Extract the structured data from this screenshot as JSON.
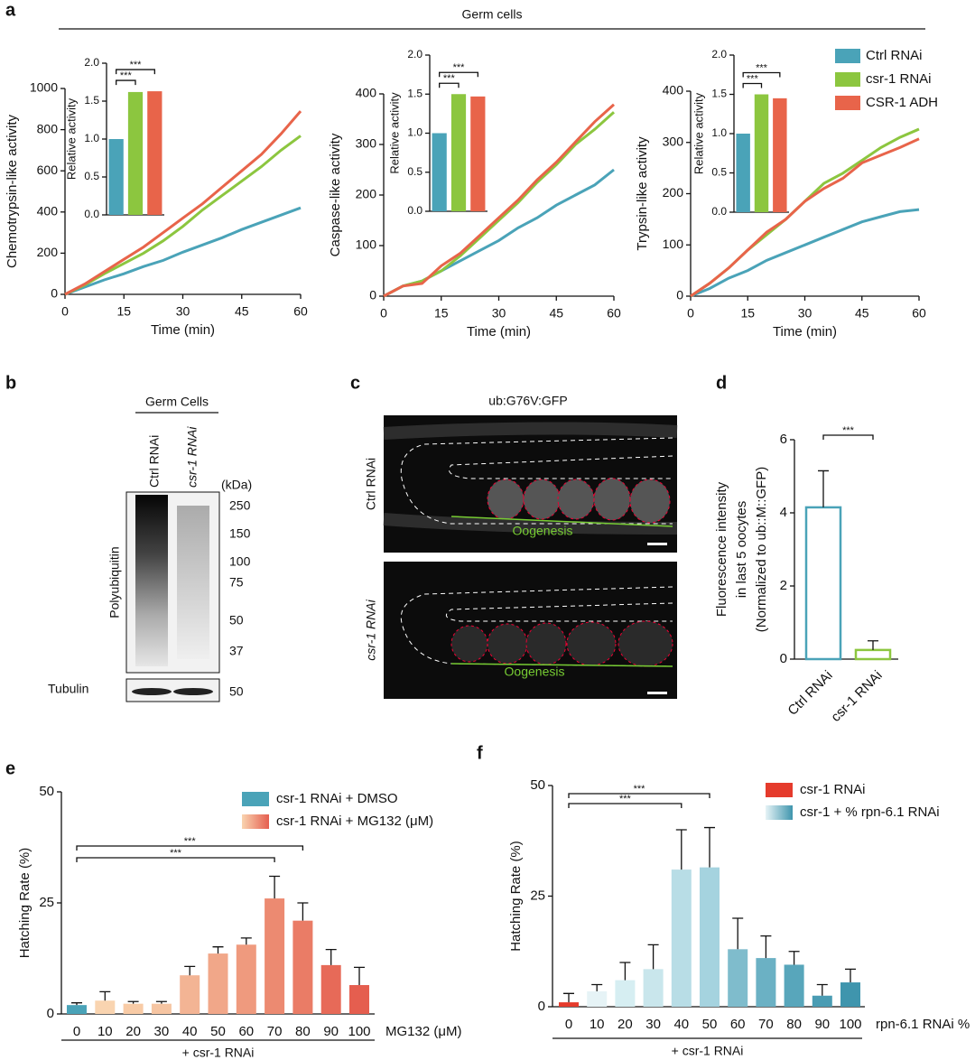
{
  "panel_labels": [
    "a",
    "b",
    "c",
    "d",
    "e",
    "f"
  ],
  "panel_a": {
    "title": "Germ cells"
  },
  "blot": {
    "header": "Germ Cells",
    "lanes": [
      "Ctrl RNAi",
      "csr-1 RNAi"
    ],
    "unit": "(kDa)",
    "markers": [
      "250",
      "150",
      "100",
      "75",
      "50",
      "37"
    ],
    "antibody": "Polyubiquitin",
    "loading_control": "Tubulin",
    "loading_marker": "50"
  },
  "micrograph": {
    "title": "ub:G76V:GFP",
    "rows": [
      "Ctrl RNAi",
      "csr-1 RNAi"
    ],
    "region_labels": [
      "Oogenesis",
      "Oogenesis"
    ]
  },
  "chart_data": [
    {
      "type": "line",
      "xlabel": "Time (min)",
      "ylabel": "Chemotrypsin-like  activity",
      "x": [
        0,
        5,
        10,
        15,
        20,
        25,
        30,
        35,
        40,
        45,
        50,
        55,
        60
      ],
      "xlim": [
        0,
        60
      ],
      "xticks": [
        0,
        15,
        30,
        45,
        60
      ],
      "ylim": [
        0,
        1000
      ],
      "yticks": [
        0,
        200,
        400,
        600,
        800,
        1000
      ],
      "series": [
        {
          "color": "#4aa3b8",
          "values": [
            0,
            35,
            70,
            100,
            135,
            165,
            205,
            240,
            275,
            315,
            350,
            385,
            420
          ]
        },
        {
          "color": "#8cc63f",
          "values": [
            0,
            45,
            100,
            150,
            200,
            260,
            330,
            410,
            480,
            550,
            620,
            700,
            770
          ]
        },
        {
          "color": "#e8644a",
          "values": [
            0,
            50,
            110,
            170,
            230,
            300,
            370,
            440,
            520,
            600,
            680,
            780,
            890
          ]
        }
      ],
      "inset": {
        "ylabel": "Relative activity",
        "values": [
          1.0,
          1.62,
          1.63
        ],
        "ylim": [
          0,
          2
        ],
        "yticks": [
          {
            "value": 0,
            "label": "0.0"
          },
          {
            "value": 0.5,
            "label": "0.5"
          },
          {
            "value": 1,
            "label": "1.0"
          },
          {
            "value": 1.5,
            "label": "1.5"
          },
          {
            "value": 2,
            "label": "2.0"
          }
        ],
        "annotations": [
          "***",
          "***"
        ]
      }
    },
    {
      "type": "line",
      "xlabel": "Time (min)",
      "ylabel": "Caspase-like activity",
      "x": [
        0,
        5,
        10,
        15,
        20,
        25,
        30,
        35,
        40,
        45,
        50,
        55,
        60
      ],
      "xlim": [
        0,
        60
      ],
      "xticks": [
        0,
        15,
        30,
        45,
        60
      ],
      "ylim": [
        0,
        400
      ],
      "yticks": [
        0,
        100,
        200,
        300,
        400
      ],
      "series": [
        {
          "color": "#4aa3b8",
          "values": [
            0,
            20,
            30,
            50,
            70,
            90,
            110,
            135,
            155,
            180,
            200,
            220,
            250
          ]
        },
        {
          "color": "#8cc63f",
          "values": [
            0,
            20,
            30,
            50,
            80,
            115,
            150,
            185,
            225,
            260,
            300,
            330,
            364
          ]
        },
        {
          "color": "#e8644a",
          "values": [
            0,
            20,
            25,
            60,
            85,
            120,
            155,
            190,
            230,
            265,
            305,
            345,
            379
          ]
        }
      ],
      "inset": {
        "ylabel": "Relative activity",
        "values": [
          1.0,
          1.5,
          1.47
        ],
        "ylim": [
          0,
          2
        ],
        "yticks": [
          {
            "value": 0,
            "label": "0.0"
          },
          {
            "value": 0.5,
            "label": "0.5"
          },
          {
            "value": 1,
            "label": "1.0"
          },
          {
            "value": 1.5,
            "label": "1.5"
          },
          {
            "value": 2,
            "label": "2.0"
          }
        ],
        "annotations": [
          "***",
          "***"
        ]
      }
    },
    {
      "type": "line",
      "xlabel": "Time (min)",
      "ylabel": "Trypsin-like activity",
      "legend": "right",
      "x": [
        0,
        5,
        10,
        15,
        20,
        25,
        30,
        35,
        40,
        45,
        50,
        55,
        60
      ],
      "xlim": [
        0,
        60
      ],
      "xticks": [
        0,
        15,
        30,
        45,
        60
      ],
      "ylim": [
        0,
        400
      ],
      "yticks": [
        0,
        100,
        200,
        300,
        400
      ],
      "series": [
        {
          "name": "Ctrl RNAi",
          "color": "#4aa3b8",
          "values": [
            0,
            15,
            35,
            50,
            70,
            85,
            100,
            115,
            130,
            145,
            155,
            165,
            169
          ]
        },
        {
          "name": "csr-1 RNAi",
          "color": "#8cc63f",
          "values": [
            0,
            25,
            55,
            90,
            120,
            150,
            185,
            220,
            240,
            265,
            290,
            310,
            326
          ]
        },
        {
          "name": "CSR-1 ADH",
          "color": "#e8644a",
          "values": [
            0,
            25,
            55,
            90,
            125,
            150,
            185,
            210,
            230,
            260,
            275,
            290,
            307
          ]
        }
      ],
      "inset": {
        "ylabel": "Relative activity",
        "values": [
          1.0,
          1.5,
          1.45
        ],
        "ylim": [
          0,
          2
        ],
        "yticks": [
          {
            "value": 0,
            "label": "0.0"
          },
          {
            "value": 0.5,
            "label": "0.5"
          },
          {
            "value": 1,
            "label": "1.0"
          },
          {
            "value": 1.5,
            "label": "1.5"
          },
          {
            "value": 2,
            "label": "2.0"
          }
        ],
        "annotations": [
          "***",
          "***"
        ]
      }
    },
    {
      "type": "bar",
      "bar_style": "outline",
      "ylabel": [
        "Fluorescence intensity",
        "in last 5 oocytes",
        "(Normalized to ub::M::GFP)"
      ],
      "categories": [
        "Ctrl RNAi",
        "csr-1 RNAi"
      ],
      "values": [
        4.15,
        0.25
      ],
      "errors": [
        1.0,
        0.25
      ],
      "colors": [
        "#4aa3b8",
        "#8cc63f"
      ],
      "ylim": [
        0,
        6
      ],
      "yticks": [
        0,
        2,
        4,
        6
      ],
      "annotations": [
        "***"
      ]
    },
    {
      "type": "bar",
      "ylabel": "Hatching Rate (%)",
      "xlabel": "MG132 (μM)",
      "group_label": "+ csr-1 RNAi",
      "categories": [
        "0",
        "10",
        "20",
        "30",
        "40",
        "50",
        "60",
        "70",
        "80",
        "90",
        "100"
      ],
      "values": [
        2,
        3,
        2.3,
        2.3,
        8.7,
        13.6,
        15.6,
        26,
        21,
        11,
        6.5
      ],
      "errors": [
        0.5,
        2,
        0.5,
        0.5,
        2,
        1.5,
        1.5,
        5,
        4,
        3.5,
        4
      ],
      "colors": [
        "#4aa3b8",
        "#f9d4b0",
        "#f8cba6",
        "#f6c5a2",
        "#f3b494",
        "#f1a789",
        "#ef9a7e",
        "#ec8a71",
        "#ea7c66",
        "#e76a58",
        "#e55e4f"
      ],
      "ylim": [
        0,
        50
      ],
      "yticks": [
        0,
        25,
        50
      ],
      "legend": [
        {
          "label": "csr-1 RNAi + DMSO",
          "color": "#4aa3b8"
        },
        {
          "label": "csr-1 RNAi + MG132 (μM)",
          "color": [
            "#f9d4b0",
            "#e55e4f"
          ]
        }
      ],
      "annotations": [
        "***",
        "***"
      ]
    },
    {
      "type": "bar",
      "ylabel": "Hatching Rate (%)",
      "xlabel": "rpn-6.1 RNAi %",
      "group_label": "+ csr-1 RNAi",
      "categories": [
        "0",
        "10",
        "20",
        "30",
        "40",
        "50",
        "60",
        "70",
        "80",
        "90",
        "100"
      ],
      "values": [
        1,
        3.5,
        6,
        8.5,
        31,
        31.5,
        13,
        11,
        9.5,
        2.5,
        5.5
      ],
      "errors": [
        2,
        1.5,
        4,
        5.5,
        9,
        9,
        7,
        5,
        3,
        2.5,
        3
      ],
      "colors": [
        "#e53b2c",
        "#e6f3f6",
        "#d6eef2",
        "#c9e6ec",
        "#b8dde6",
        "#a5d3df",
        "#7fbccc",
        "#6bb1c4",
        "#58a6bb",
        "#4a9cb3",
        "#3f95ad"
      ],
      "ylim": [
        0,
        50
      ],
      "yticks": [
        0,
        25,
        50
      ],
      "legend": [
        {
          "label": "csr-1 RNAi",
          "color": "#e53b2c"
        },
        {
          "label": "csr-1 + % rpn-6.1 RNAi",
          "color": [
            "#e6f3f6",
            "#3f95ad"
          ]
        }
      ],
      "annotations": [
        "***",
        "***"
      ]
    }
  ]
}
